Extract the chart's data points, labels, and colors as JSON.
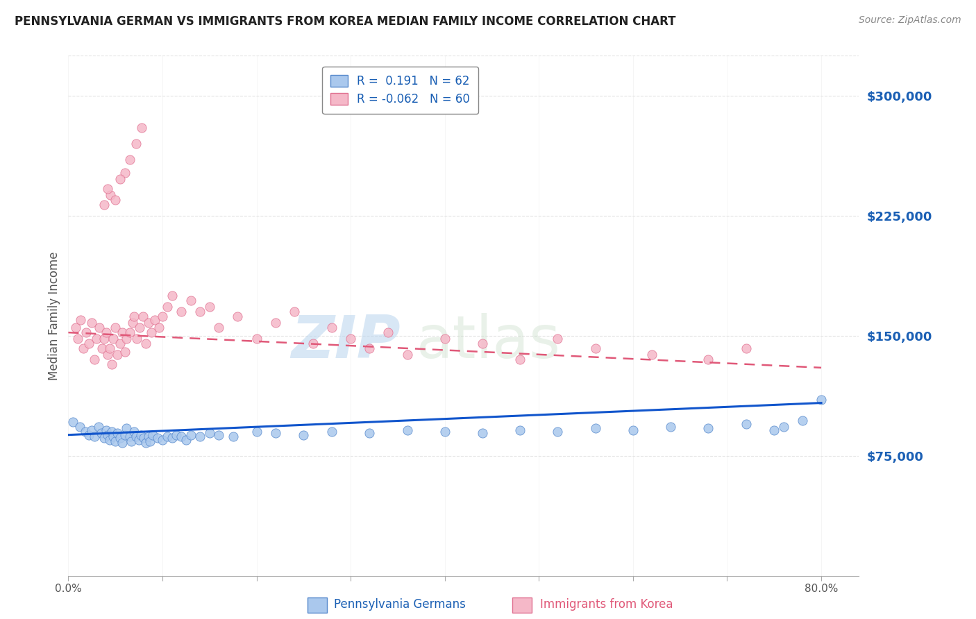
{
  "title": "PENNSYLVANIA GERMAN VS IMMIGRANTS FROM KOREA MEDIAN FAMILY INCOME CORRELATION CHART",
  "source": "Source: ZipAtlas.com",
  "ylabel": "Median Family Income",
  "yticks": [
    0,
    75000,
    150000,
    225000,
    300000
  ],
  "ytick_labels": [
    "",
    "$75,000",
    "$150,000",
    "$225,000",
    "$300,000"
  ],
  "xticks": [
    0.0,
    0.1,
    0.2,
    0.3,
    0.4,
    0.5,
    0.6,
    0.7,
    0.8
  ],
  "xtick_labels": [
    "0.0%",
    "",
    "",
    "",
    "",
    "",
    "",
    "",
    "80.0%"
  ],
  "xlim": [
    0.0,
    0.84
  ],
  "ylim": [
    30000,
    325000
  ],
  "watermark_text": "ZIP",
  "watermark_text2": "atlas",
  "series1_label": "Pennsylvania Germans",
  "series1_R": " 0.191",
  "series1_N": "62",
  "series1_color": "#aac8ed",
  "series1_edge_color": "#5588cc",
  "series1_line_color": "#1155cc",
  "series2_label": "Immigrants from Korea",
  "series2_R": "-0.062",
  "series2_N": "60",
  "series2_color": "#f5b8c8",
  "series2_edge_color": "#e07090",
  "series2_line_color": "#e05878",
  "background_color": "#ffffff",
  "grid_color": "#dddddd",
  "title_color": "#222222",
  "axis_label_color": "#1a5fb4",
  "tick_label_color": "#555555",
  "legend_border_color": "#888888",
  "series1_x": [
    0.005,
    0.012,
    0.018,
    0.022,
    0.025,
    0.028,
    0.032,
    0.035,
    0.038,
    0.04,
    0.042,
    0.044,
    0.046,
    0.048,
    0.05,
    0.052,
    0.055,
    0.057,
    0.06,
    0.062,
    0.065,
    0.067,
    0.07,
    0.072,
    0.075,
    0.077,
    0.08,
    0.082,
    0.085,
    0.087,
    0.09,
    0.095,
    0.1,
    0.105,
    0.11,
    0.115,
    0.12,
    0.125,
    0.13,
    0.14,
    0.15,
    0.16,
    0.175,
    0.2,
    0.22,
    0.25,
    0.28,
    0.32,
    0.36,
    0.4,
    0.44,
    0.48,
    0.52,
    0.56,
    0.6,
    0.64,
    0.68,
    0.72,
    0.75,
    0.76,
    0.78,
    0.8
  ],
  "series1_y": [
    96000,
    93000,
    90000,
    88000,
    91000,
    87000,
    93000,
    89000,
    86000,
    91000,
    88000,
    85000,
    90000,
    87000,
    84000,
    89000,
    86000,
    83000,
    88000,
    92000,
    87000,
    84000,
    90000,
    87000,
    85000,
    88000,
    86000,
    83000,
    87000,
    84000,
    88000,
    86000,
    85000,
    87000,
    86000,
    88000,
    87000,
    85000,
    88000,
    87000,
    89000,
    88000,
    87000,
    90000,
    89000,
    88000,
    90000,
    89000,
    91000,
    90000,
    89000,
    91000,
    90000,
    92000,
    91000,
    93000,
    92000,
    95000,
    91000,
    93000,
    97000,
    110000
  ],
  "series2_x": [
    0.008,
    0.01,
    0.013,
    0.016,
    0.019,
    0.022,
    0.025,
    0.028,
    0.03,
    0.033,
    0.036,
    0.038,
    0.04,
    0.042,
    0.044,
    0.046,
    0.048,
    0.05,
    0.052,
    0.055,
    0.057,
    0.06,
    0.062,
    0.065,
    0.068,
    0.07,
    0.073,
    0.076,
    0.079,
    0.082,
    0.085,
    0.088,
    0.092,
    0.096,
    0.1,
    0.105,
    0.11,
    0.12,
    0.13,
    0.14,
    0.15,
    0.16,
    0.18,
    0.2,
    0.22,
    0.24,
    0.26,
    0.28,
    0.3,
    0.32,
    0.34,
    0.36,
    0.4,
    0.44,
    0.48,
    0.52,
    0.56,
    0.62,
    0.68,
    0.72
  ],
  "series2_y": [
    155000,
    148000,
    160000,
    142000,
    152000,
    145000,
    158000,
    135000,
    148000,
    155000,
    142000,
    148000,
    152000,
    138000,
    142000,
    132000,
    148000,
    155000,
    138000,
    145000,
    152000,
    140000,
    148000,
    152000,
    158000,
    162000,
    148000,
    155000,
    162000,
    145000,
    158000,
    152000,
    160000,
    155000,
    162000,
    168000,
    175000,
    165000,
    172000,
    165000,
    168000,
    155000,
    162000,
    148000,
    158000,
    165000,
    145000,
    155000,
    148000,
    142000,
    152000,
    138000,
    148000,
    145000,
    135000,
    148000,
    142000,
    138000,
    135000,
    142000
  ],
  "series2_high_x": [
    0.065,
    0.072,
    0.078,
    0.06,
    0.055,
    0.045,
    0.05,
    0.042,
    0.038
  ],
  "series2_high_y": [
    260000,
    270000,
    280000,
    252000,
    248000,
    238000,
    235000,
    242000,
    232000
  ],
  "series1_trend_x0": 0.0,
  "series1_trend_y0": 88000,
  "series1_trend_x1": 0.8,
  "series1_trend_y1": 108000,
  "series2_trend_x0": 0.0,
  "series2_trend_y0": 152000,
  "series2_trend_x1": 0.8,
  "series2_trend_y1": 130000
}
